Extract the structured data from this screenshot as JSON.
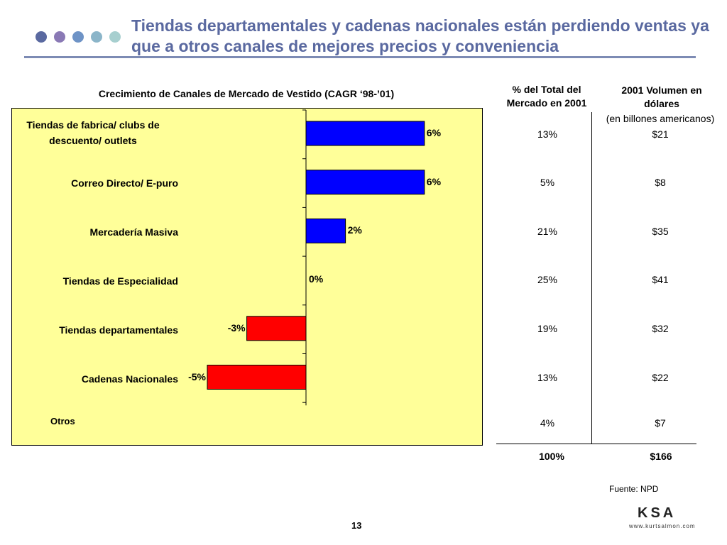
{
  "slide": {
    "title": "Tiendas departamentales y cadenas nacionales están perdiendo ventas ya que a otros canales de mejores precios y conveniencia",
    "dot_colors": [
      "#5a69a0",
      "#8a79b5",
      "#6e93c6",
      "#8bb5c9",
      "#a7cfcf"
    ],
    "page_number": "13",
    "source": "Fuente:  NPD",
    "logo_text": "KSA",
    "logo_url_text": "www.kurtsalmon.com"
  },
  "chart_data": {
    "type": "bar",
    "orientation": "horizontal",
    "title": "Crecimiento de Canales de Mercado de Vestido (CAGR ‘98-’01)",
    "categories": [
      "Tiendas de fabrica/ clubs de descuento/ outlets",
      "Correo Directo/ E-puro",
      "Mercadería Masiva",
      "Tiendas de Especialidad",
      "Tiendas departamentales",
      "Cadenas Nacionales",
      "Otros"
    ],
    "values": [
      6,
      6,
      2,
      0,
      -3,
      -5,
      null
    ],
    "labels": [
      "6%",
      "6%",
      "2%",
      "0%",
      "-3%",
      "-5%",
      ""
    ],
    "xlim": [
      -5,
      6
    ],
    "positive_color": "#0000ff",
    "negative_color": "#ff0000",
    "background": "#ffff99",
    "grid": false
  },
  "table": {
    "share_header": "% del Total del Mercado en 2001",
    "volume_header": "2001 Volumen en dólares",
    "volume_subheader": "(en billones americanos)",
    "share": [
      "13%",
      "5%",
      "21%",
      "25%",
      "19%",
      "13%",
      "4%"
    ],
    "volume": [
      "$21",
      "$8",
      "$35",
      "$41",
      "$32",
      "$22",
      "$7"
    ],
    "total_share": "100%",
    "total_volume": "$166"
  }
}
